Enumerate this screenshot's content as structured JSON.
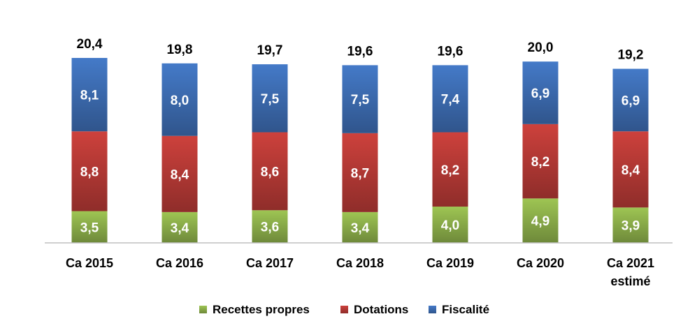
{
  "chart_data": {
    "type": "bar",
    "stacked": true,
    "categories": [
      [
        "Ca 2015"
      ],
      [
        "Ca 2016"
      ],
      [
        "Ca 2017"
      ],
      [
        "Ca 2018"
      ],
      [
        "Ca 2019"
      ],
      [
        "Ca 2020"
      ],
      [
        "Ca 2021",
        "estimé"
      ]
    ],
    "series": [
      {
        "name": "Recettes propres",
        "color": "#8db04a",
        "values": [
          3.5,
          3.4,
          3.6,
          3.4,
          4.0,
          4.9,
          3.9
        ],
        "labels": [
          "3,5",
          "3,4",
          "3,6",
          "3,4",
          "4,0",
          "4,9",
          "3,9"
        ]
      },
      {
        "name": "Dotations",
        "color": "#b73a36",
        "values": [
          8.8,
          8.4,
          8.6,
          8.7,
          8.2,
          8.2,
          8.4
        ],
        "labels": [
          "8,8",
          "8,4",
          "8,6",
          "8,7",
          "8,2",
          "8,2",
          "8,4"
        ]
      },
      {
        "name": "Fiscalité",
        "color": "#3d6db3",
        "values": [
          8.1,
          8.0,
          7.5,
          7.5,
          7.4,
          6.9,
          6.9
        ],
        "labels": [
          "8,1",
          "8,0",
          "7,5",
          "7,5",
          "7,4",
          "6,9",
          "6,9"
        ]
      }
    ],
    "totals": [
      20.4,
      19.8,
      19.7,
      19.6,
      19.6,
      20.0,
      19.2
    ],
    "total_labels": [
      "20,4",
      "19,8",
      "19,7",
      "19,6",
      "19,6",
      "20,0",
      "19,2"
    ],
    "ylim": [
      0,
      20.4
    ],
    "legend_position": "bottom",
    "grid": false,
    "title": "",
    "xlabel": "",
    "ylabel": ""
  }
}
